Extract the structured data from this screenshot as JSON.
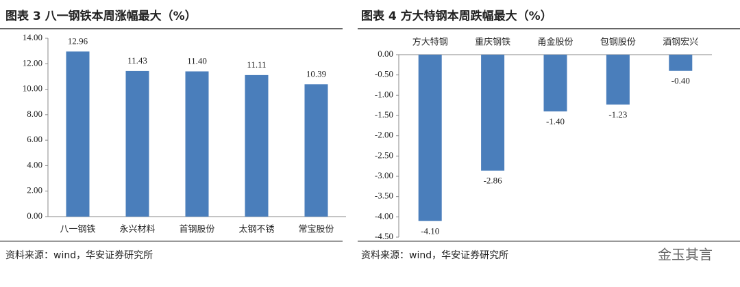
{
  "chart_data": [
    {
      "type": "bar",
      "title": "图表 3  八一钢铁本周涨幅最大（%）",
      "categories": [
        "八一钢铁",
        "永兴材料",
        "首钢股份",
        "太钢不锈",
        "常宝股份"
      ],
      "values": [
        12.96,
        11.43,
        11.4,
        11.11,
        10.39
      ],
      "value_labels": [
        "12.96",
        "11.43",
        "11.40",
        "11.11",
        "10.39"
      ],
      "color": "#4a7ebb",
      "ylim": [
        0,
        14
      ],
      "yticks": [
        {
          "value": 0,
          "label": "0.00"
        },
        {
          "value": 2,
          "label": "2.00"
        },
        {
          "value": 4,
          "label": "4.00"
        },
        {
          "value": 6,
          "label": "6.00"
        },
        {
          "value": 8,
          "label": "8.00"
        },
        {
          "value": 10,
          "label": "10.00"
        },
        {
          "value": 12,
          "label": "12.00"
        },
        {
          "value": 14,
          "label": "14.00"
        }
      ],
      "source": "资料来源：wind，华安证券研究所"
    },
    {
      "type": "bar",
      "title": "图表 4  方大特钢本周跌幅最大（%）",
      "categories": [
        "方大特钢",
        "重庆钢铁",
        "甬金股份",
        "包钢股份",
        "酒钢宏兴"
      ],
      "values": [
        -4.1,
        -2.86,
        -1.4,
        -1.23,
        -0.4
      ],
      "value_labels": [
        "-4.10",
        "-2.86",
        "-1.40",
        "-1.23",
        "-0.40"
      ],
      "color": "#4a7ebb",
      "ylim": [
        -4.5,
        0
      ],
      "yticks": [
        {
          "value": -4.5,
          "label": "-4.50"
        },
        {
          "value": -4,
          "label": "-4.00"
        },
        {
          "value": -3.5,
          "label": "-3.50"
        },
        {
          "value": -3,
          "label": "-3.00"
        },
        {
          "value": -2.5,
          "label": "-2.50"
        },
        {
          "value": -2,
          "label": "-2.00"
        },
        {
          "value": -1.5,
          "label": "-1.50"
        },
        {
          "value": -1,
          "label": "-1.00"
        },
        {
          "value": -0.5,
          "label": "-0.50"
        },
        {
          "value": 0,
          "label": "0.00"
        }
      ],
      "source": "资料来源：wind，华安证券研究所"
    }
  ],
  "watermark": "金玉其言"
}
